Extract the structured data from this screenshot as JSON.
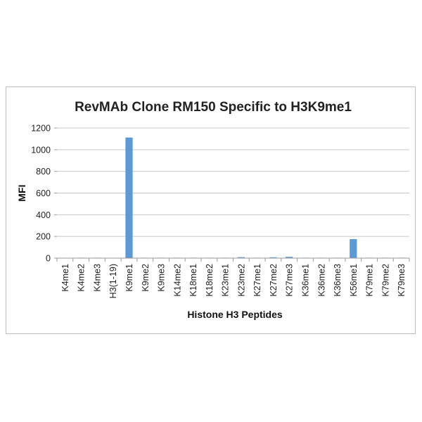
{
  "chart_data": {
    "type": "bar",
    "title": "RevMAb Clone RM150 Specific to H3K9me1",
    "xlabel": "Histone H3 Peptides",
    "ylabel": "MFI",
    "ylim": [
      0,
      1200
    ],
    "yticks": [
      0,
      200,
      400,
      600,
      800,
      1000,
      1200
    ],
    "grid": true,
    "legend": "none",
    "bar_color": "#5b9bd5",
    "categories": [
      "K4me1",
      "K4me2",
      "K4me3",
      "H3(1-19)",
      "K9me1",
      "K9me2",
      "K9me3",
      "K14me2",
      "K18me1",
      "K18me2",
      "K23me1",
      "K23me2",
      "K27me1",
      "K27me2",
      "K27me3",
      "K36me1",
      "K36me2",
      "K36me3",
      "K56me1",
      "K79me1",
      "K79me2",
      "K79me3"
    ],
    "values": [
      3,
      4,
      4,
      3,
      1112,
      4,
      4,
      4,
      4,
      4,
      4,
      9,
      4,
      8,
      12,
      4,
      4,
      4,
      175,
      4,
      4,
      4
    ]
  }
}
